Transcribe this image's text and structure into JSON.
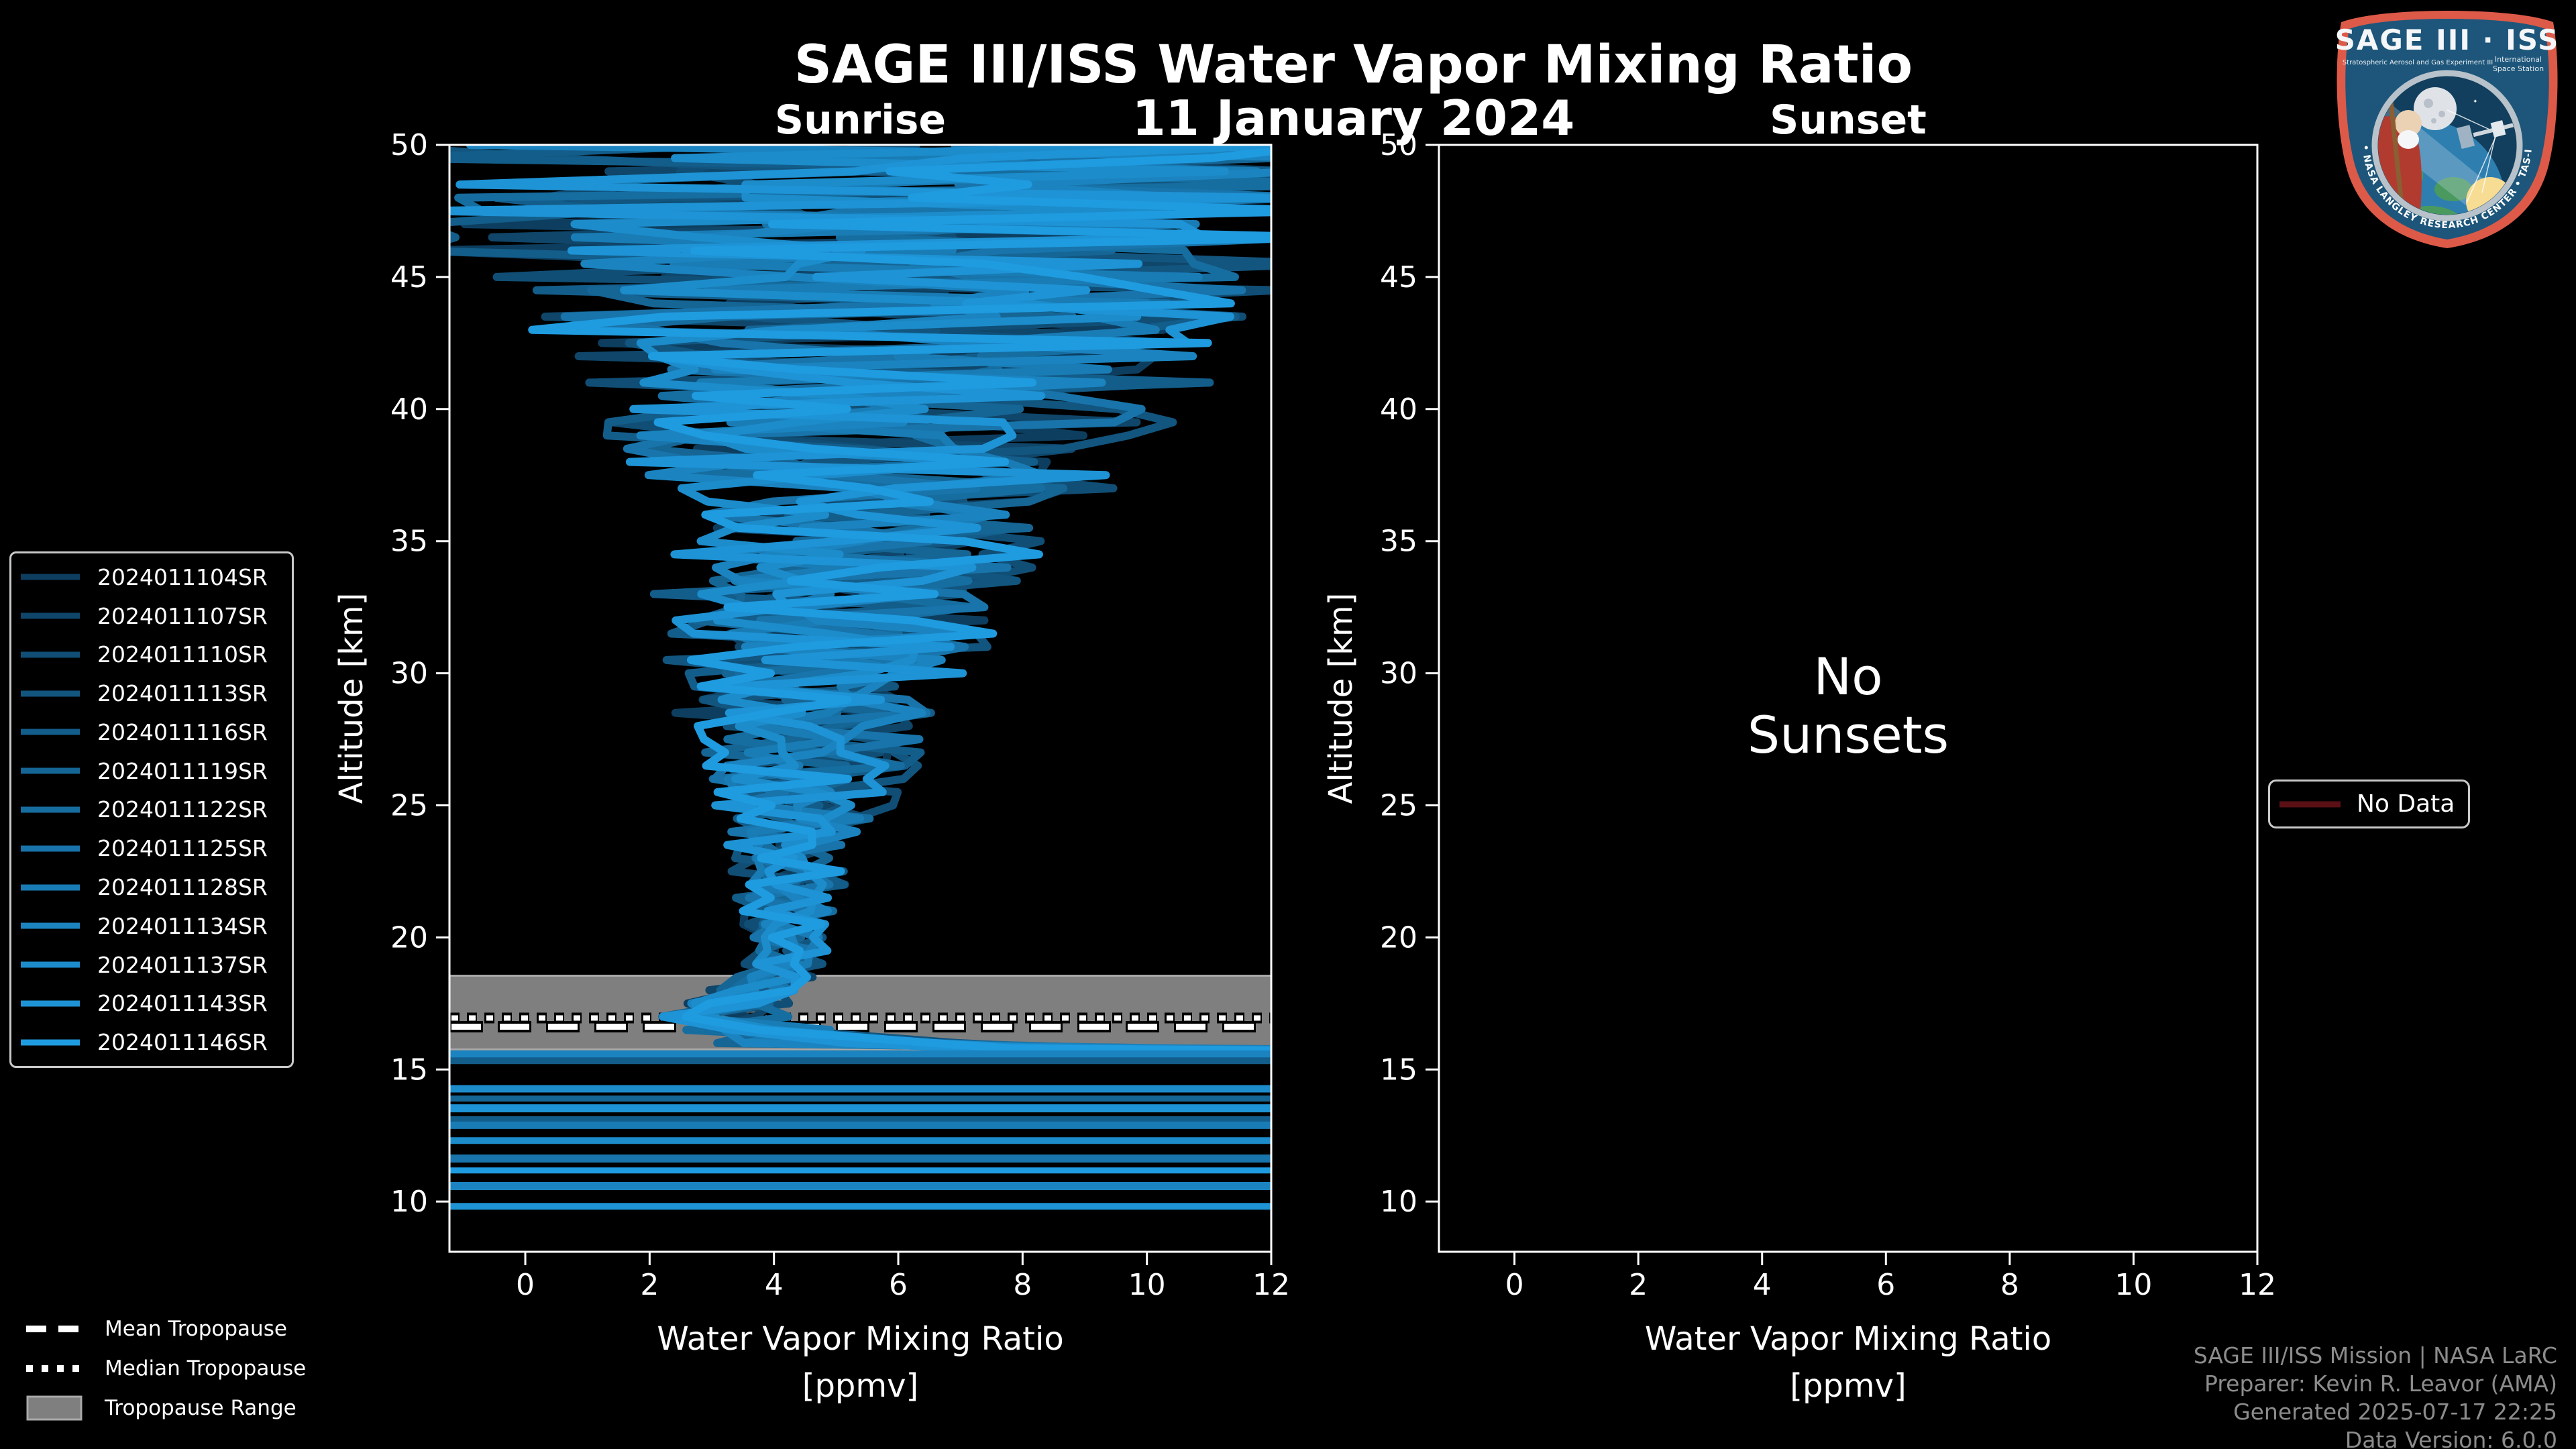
{
  "chart_data": {
    "type": "line",
    "title": "SAGE III/ISS Water Vapor Mixing Ratio",
    "date": "11 January 2024",
    "panel_titles": {
      "left": "Sunrise",
      "right": "Sunset"
    },
    "xlabel_line1": "Water Vapor Mixing Ratio",
    "xlabel_line2": "[ppmv]",
    "ylabel": "Altitude [km]",
    "xlim": [
      -1.22,
      12
    ],
    "ylim": [
      8.1,
      50
    ],
    "x_ticks": [
      0,
      2,
      4,
      6,
      8,
      10,
      12
    ],
    "y_ticks": [
      10,
      15,
      20,
      25,
      30,
      35,
      40,
      45,
      50
    ],
    "grid": false,
    "legend_position": "outside-left",
    "sunset_annotation_lines": [
      "No",
      "Sunsets"
    ],
    "no_data_label": "No Data",
    "no_data_color": "#5a0f15",
    "series": [
      {
        "label": "2024011104SR",
        "color": "#0d3e5f",
        "seed": 11
      },
      {
        "label": "2024011107SR",
        "color": "#0f466a",
        "seed": 23
      },
      {
        "label": "2024011110SR",
        "color": "#104e75",
        "seed": 37
      },
      {
        "label": "2024011113SR",
        "color": "#12557f",
        "seed": 41
      },
      {
        "label": "2024011116SR",
        "color": "#135d8a",
        "seed": 53
      },
      {
        "label": "2024011119SR",
        "color": "#156595",
        "seed": 67
      },
      {
        "label": "2024011122SR",
        "color": "#166da0",
        "seed": 79
      },
      {
        "label": "2024011125SR",
        "color": "#1874aa",
        "seed": 83
      },
      {
        "label": "2024011128SR",
        "color": "#197cb5",
        "seed": 97
      },
      {
        "label": "2024011134SR",
        "color": "#1b84c0",
        "seed": 101
      },
      {
        "label": "2024011137SR",
        "color": "#1c8ccb",
        "seed": 113
      },
      {
        "label": "2024011143SR",
        "color": "#1e93d5",
        "seed": 127
      },
      {
        "label": "2024011146SR",
        "color": "#1f9be0",
        "seed": 139
      }
    ],
    "altitude_step_km": 0.5,
    "profile_envelope_alt_center_spread": [
      [
        50,
        6.2,
        7.5
      ],
      [
        48,
        6.0,
        7.2
      ],
      [
        46,
        5.9,
        6.6
      ],
      [
        44,
        5.8,
        5.8
      ],
      [
        42,
        5.7,
        5.2
      ],
      [
        40,
        5.6,
        4.4
      ],
      [
        38,
        5.5,
        3.8
      ],
      [
        36,
        5.4,
        3.3
      ],
      [
        34,
        5.2,
        2.9
      ],
      [
        32,
        5.0,
        2.6
      ],
      [
        30,
        4.8,
        2.3
      ],
      [
        28,
        4.6,
        1.9
      ],
      [
        26,
        4.5,
        1.5
      ],
      [
        24,
        4.35,
        1.1
      ],
      [
        22,
        4.25,
        0.85
      ],
      [
        20,
        4.3,
        0.65
      ],
      [
        19,
        4.2,
        0.6
      ],
      [
        18.5,
        4.0,
        0.65
      ],
      [
        18,
        3.7,
        0.85
      ],
      [
        17.5,
        3.4,
        0.95
      ],
      [
        17,
        3.3,
        1.05
      ],
      [
        16.5,
        3.9,
        1.5
      ],
      [
        16,
        5.0,
        2.2
      ]
    ],
    "offscale_stripes_alt_colorindex_width": [
      [
        15.56,
        9,
        13
      ],
      [
        15.33,
        4,
        10
      ],
      [
        14.27,
        10,
        11
      ],
      [
        13.9,
        5,
        9
      ],
      [
        13.53,
        11,
        12
      ],
      [
        13.12,
        4,
        9
      ],
      [
        12.89,
        8,
        11
      ],
      [
        12.31,
        10,
        10
      ],
      [
        11.63,
        7,
        12
      ],
      [
        11.18,
        12,
        9
      ],
      [
        10.59,
        9,
        12
      ],
      [
        9.82,
        11,
        10
      ]
    ],
    "tropopause": {
      "mean_km": 16.62,
      "median_km": 16.95,
      "range_km": [
        15.76,
        18.55
      ],
      "band_color": "#7f7f7f",
      "band_edge_color": "#a9a9a9"
    },
    "tropopause_legend": {
      "mean": "Mean Tropopause",
      "median": "Median Tropopause",
      "range": "Tropopause Range"
    }
  },
  "attribution": {
    "lines": [
      "SAGE III/ISS Mission | NASA LaRC",
      "Preparer: Kevin R. Leavor (AMA)",
      "Generated 2025-07-17 22:25",
      "Data Version: 6.0.0"
    ]
  },
  "logo": {
    "mission": "SAGE III · ISS",
    "program_left": "Stratospheric Aerosol and Gas Experiment III",
    "program_right_line1": "International",
    "program_right_line2": "Space Station",
    "arc_text": "BALL • NASA LANGLEY RESEARCH CENTER • TAS-I • ESA"
  }
}
